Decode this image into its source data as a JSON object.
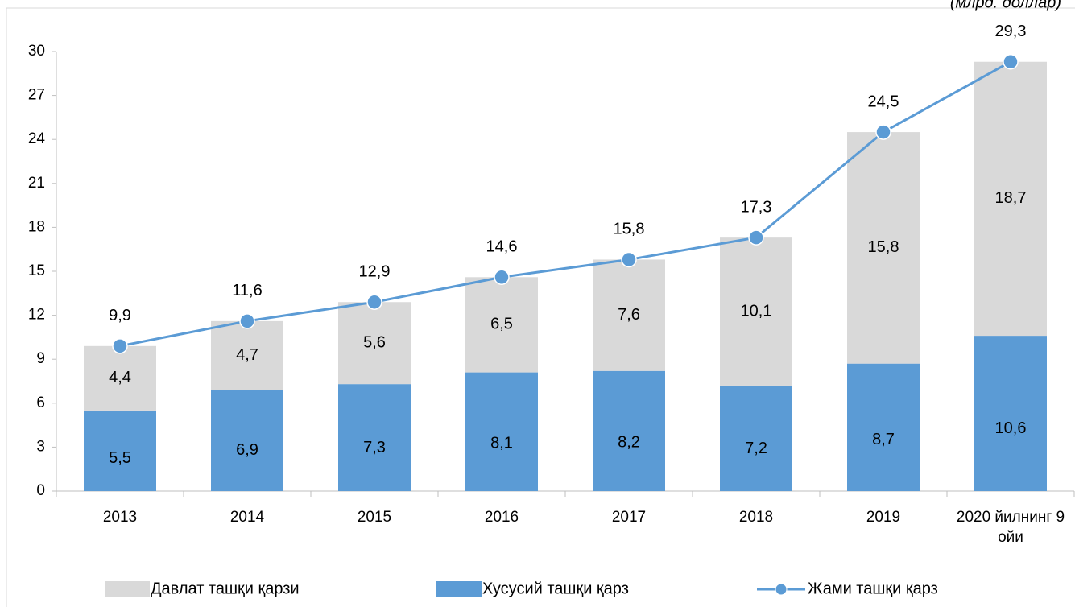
{
  "chart_data": {
    "type": "stacked_bar_line",
    "unit_label": "(млрд. доллар)",
    "categories": [
      "2013",
      "2014",
      "2015",
      "2016",
      "2017",
      "2018",
      "2019",
      "2020 йилнинг 9 ойи"
    ],
    "series": [
      {
        "name": "Давлат ташқи қарзи",
        "color": "#d9d9d9",
        "type": "bar",
        "values": [
          4.4,
          4.7,
          5.6,
          6.5,
          7.6,
          10.1,
          15.8,
          18.7
        ],
        "value_labels": [
          "4,4",
          "4,7",
          "5,6",
          "6,5",
          "7,6",
          "10,1",
          "15,8",
          "18,7"
        ]
      },
      {
        "name": "Хусусий ташқи қарз",
        "color": "#5b9bd5",
        "type": "bar",
        "values": [
          5.5,
          6.9,
          7.3,
          8.1,
          8.2,
          7.2,
          8.7,
          10.6
        ],
        "value_labels": [
          "5,5",
          "6,9",
          "7,3",
          "8,1",
          "8,2",
          "7,2",
          "8,7",
          "10,6"
        ]
      },
      {
        "name": "Жами ташқи қарз",
        "color": "#5b9bd5",
        "type": "line",
        "values": [
          9.9,
          11.6,
          12.9,
          14.6,
          15.8,
          17.3,
          24.5,
          29.3
        ],
        "value_labels": [
          "9,9",
          "11,6",
          "12,9",
          "14,6",
          "15,8",
          "17,3",
          "24,5",
          "29,3"
        ]
      }
    ],
    "ylim": [
      0,
      30
    ],
    "yticks": [
      0,
      3,
      6,
      9,
      12,
      15,
      18,
      21,
      24,
      27,
      30
    ],
    "grid": false,
    "legend": "bottom"
  }
}
